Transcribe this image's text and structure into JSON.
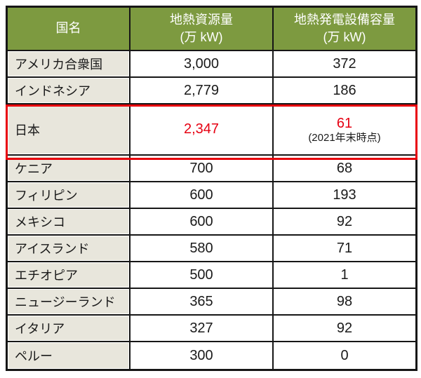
{
  "colors": {
    "header_bg": "#7d9a40",
    "header_text": "#ffffff",
    "country_cell_bg": "#e8e6dc",
    "grid_border": "#161616",
    "highlight_red": "#e8000c",
    "emphasis_text_red": "#e60012",
    "body_text": "#1a1a1a"
  },
  "table": {
    "header": {
      "country": "国名",
      "resource_title": "地熱資源量",
      "capacity_title": "地熱発電設備容量",
      "unit": "(万 kW)"
    },
    "rows": [
      {
        "country": "アメリカ合衆国",
        "resource": "3,000",
        "capacity": "372"
      },
      {
        "country": "インドネシア",
        "resource": "2,779",
        "capacity": "186"
      },
      {
        "country": "日本",
        "resource": "2,347",
        "capacity": "61",
        "capacity_note": "(2021年末時点)"
      },
      {
        "country": "ケニア",
        "resource": "700",
        "capacity": "68"
      },
      {
        "country": "フィリピン",
        "resource": "600",
        "capacity": "193"
      },
      {
        "country": "メキシコ",
        "resource": "600",
        "capacity": "92"
      },
      {
        "country": "アイスランド",
        "resource": "580",
        "capacity": "71"
      },
      {
        "country": "エチオピア",
        "resource": "500",
        "capacity": "1"
      },
      {
        "country": "ニュージーランド",
        "resource": "365",
        "capacity": "98"
      },
      {
        "country": "イタリア",
        "resource": "327",
        "capacity": "92"
      },
      {
        "country": "ペルー",
        "resource": "300",
        "capacity": "0"
      }
    ]
  },
  "chart_data": {
    "type": "table",
    "columns": [
      "国名",
      "地熱資源量(万kW)",
      "地熱発電設備容量(万kW)"
    ],
    "rows": [
      [
        "アメリカ合衆国",
        3000,
        372
      ],
      [
        "インドネシア",
        2779,
        186
      ],
      [
        "日本",
        2347,
        61
      ],
      [
        "ケニア",
        700,
        68
      ],
      [
        "フィリピン",
        600,
        193
      ],
      [
        "メキシコ",
        600,
        92
      ],
      [
        "アイスランド",
        580,
        71
      ],
      [
        "エチオピア",
        500,
        1
      ],
      [
        "ニュージーランド",
        365,
        98
      ],
      [
        "イタリア",
        327,
        92
      ],
      [
        "ペルー",
        300,
        0
      ]
    ],
    "annotations": [
      {
        "row": "日本",
        "column": "地熱発電設備容量(万kW)",
        "note": "(2021年末時点)"
      },
      {
        "row": "日本",
        "highlight": "red-outline-box",
        "emphasized_values_red": [
          2347,
          61
        ]
      }
    ]
  }
}
